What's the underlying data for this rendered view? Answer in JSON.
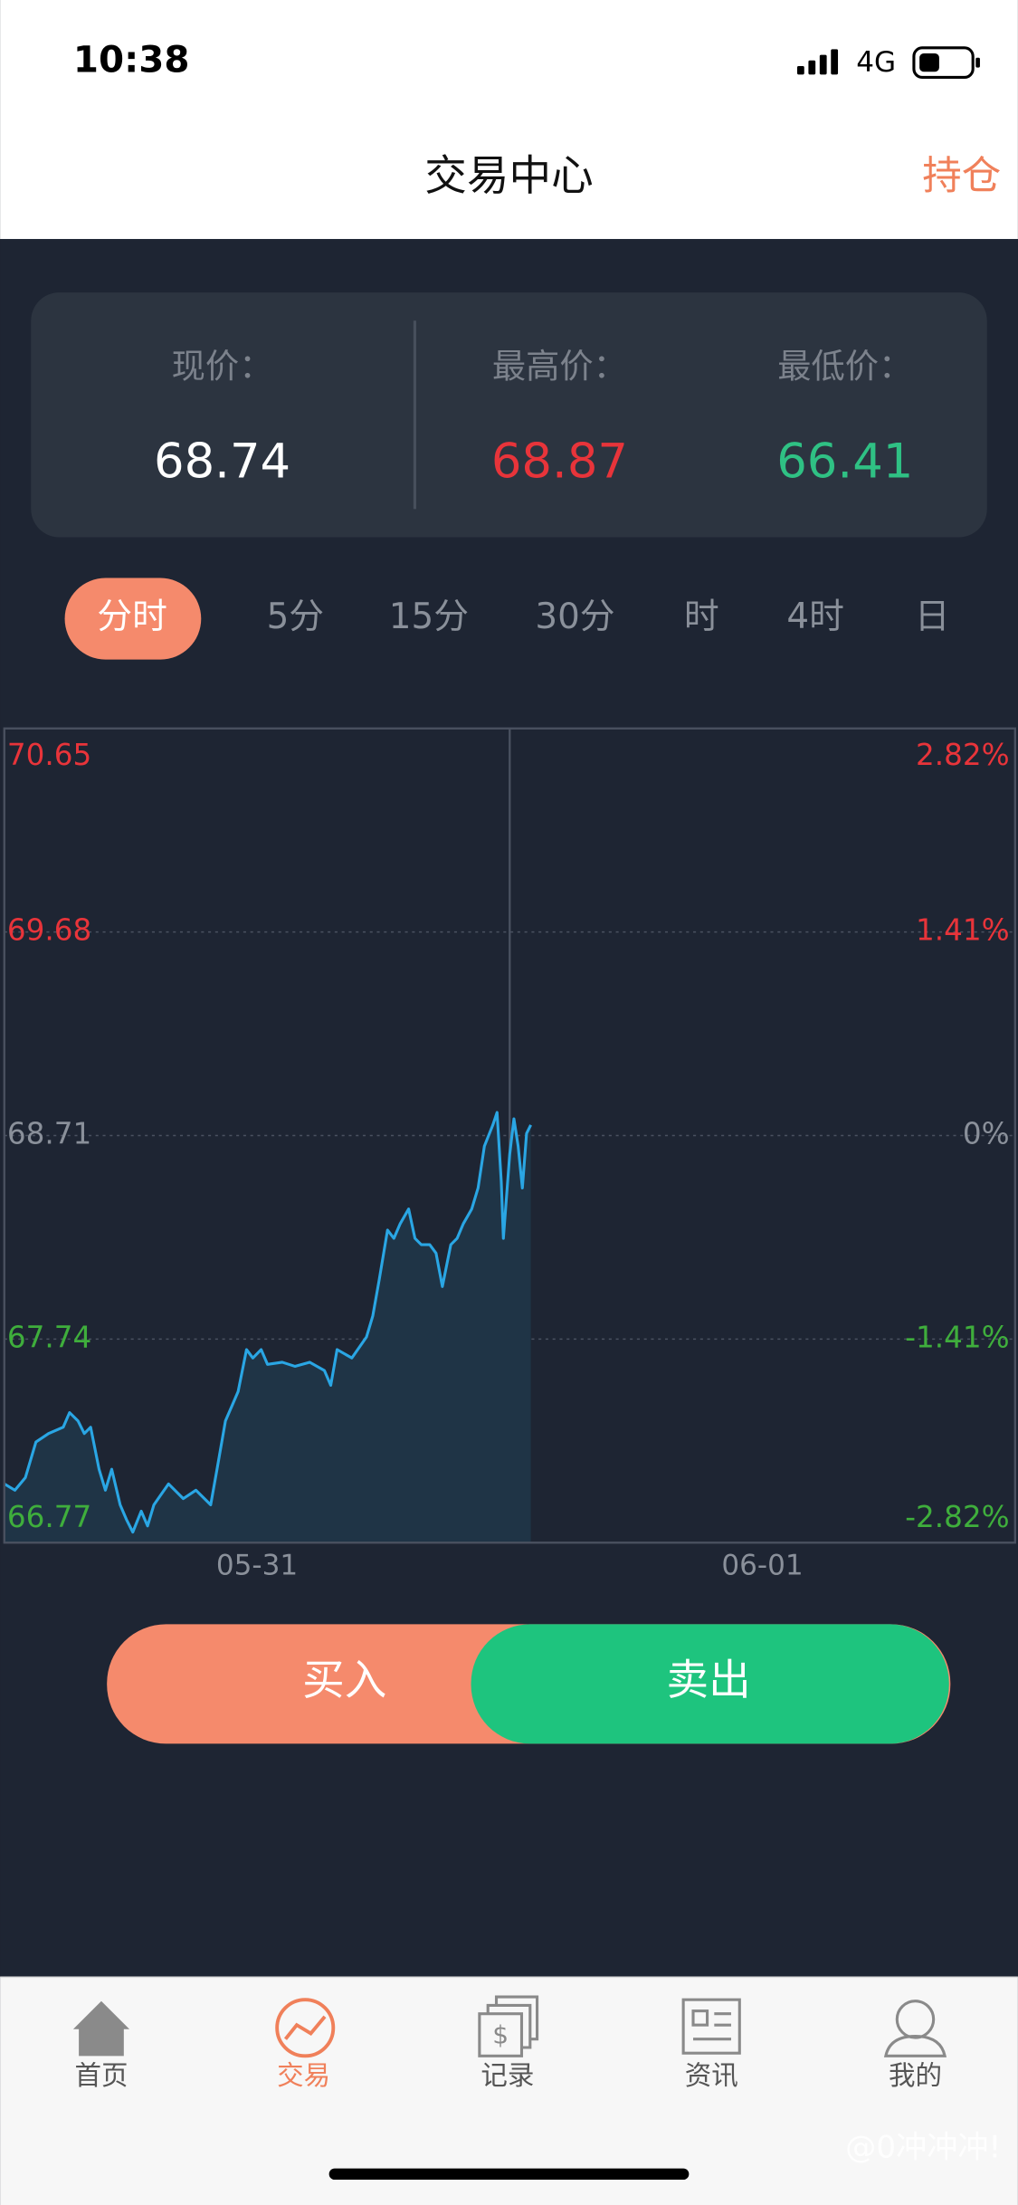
{
  "status_bar": {
    "time": "10:38",
    "network": "4G"
  },
  "header": {
    "title": "交易中心",
    "action": "持仓"
  },
  "price_panel": {
    "items": [
      {
        "label": "现价：",
        "value": 68.74
      },
      {
        "label": "最高价：",
        "value": 68.87
      },
      {
        "label": "最低价：",
        "value": 66.41
      }
    ]
  },
  "tabs": [
    "分时",
    "5分",
    "15分",
    "30分",
    "时",
    "4时",
    "日"
  ],
  "chart_data": {
    "type": "line",
    "color": "#2aa6e4",
    "area_color": "#1f3446",
    "up_color": "#e8343a",
    "down_color": "#3fae3c",
    "flat_color": "#8a909a",
    "x": [
      0,
      0.5,
      1.0,
      1.5,
      2.1,
      2.8,
      3.1,
      3.5,
      3.8,
      4.1,
      4.5,
      4.8,
      5.1,
      5.5,
      5.8,
      6.1,
      6.5,
      6.8,
      7.1,
      7.8,
      8.5,
      9.1,
      9.8,
      10.1,
      10.5,
      10.8,
      11.1,
      11.5,
      11.8,
      12.2,
      12.5,
      13.2,
      13.8,
      14.5,
      15.2,
      15.5,
      15.8,
      16.5,
      17.2,
      17.5,
      17.8,
      18.2,
      18.5,
      18.8,
      19.2,
      19.5,
      19.8,
      20.2,
      20.5,
      20.8,
      21.2,
      21.5,
      21.8,
      22.2,
      22.5,
      22.8,
      23.2,
      23.4,
      23.6,
      23.7,
      24.0,
      24.2,
      24.4,
      24.6,
      24.8,
      25.0
    ],
    "values": [
      67.05,
      67.02,
      67.08,
      67.25,
      67.29,
      67.32,
      67.39,
      67.35,
      67.29,
      67.32,
      67.12,
      67.02,
      67.12,
      66.95,
      66.88,
      66.82,
      66.92,
      66.85,
      66.95,
      67.05,
      66.98,
      67.02,
      66.95,
      67.12,
      67.35,
      67.42,
      67.49,
      67.69,
      67.65,
      67.69,
      67.62,
      67.63,
      67.61,
      67.63,
      67.59,
      67.52,
      67.69,
      67.65,
      67.75,
      67.85,
      68.02,
      68.26,
      68.22,
      68.29,
      68.36,
      68.22,
      68.19,
      68.19,
      68.15,
      67.99,
      68.19,
      68.22,
      68.29,
      68.36,
      68.46,
      68.66,
      68.76,
      68.82,
      68.49,
      68.22,
      68.62,
      68.79,
      68.66,
      68.46,
      68.72,
      68.76
    ],
    "xlim": [
      0,
      48
    ],
    "xticks": [
      {
        "value": 12,
        "label": "05-31"
      },
      {
        "value": 36,
        "label": "06-01"
      }
    ],
    "ylim": [
      66.77,
      70.65
    ],
    "yticks": [
      70.65,
      69.68,
      68.71,
      67.74,
      66.77
    ],
    "y2lim": [
      -2.82,
      2.82
    ],
    "y2ticks": [
      {
        "value": 2.82,
        "label": "2.82%"
      },
      {
        "value": 1.41,
        "label": "1.41%"
      },
      {
        "value": 0,
        "label": "0%"
      },
      {
        "value": -1.41,
        "label": "-1.41%"
      },
      {
        "value": -2.82,
        "label": "-2.82%"
      }
    ],
    "grid": true
  },
  "actions": {
    "buy": "买入",
    "sell": "卖出"
  },
  "tab_bar": [
    "首页",
    "交易",
    "记录",
    "资讯",
    "我的"
  ],
  "watermark": "@0冲冲冲!"
}
